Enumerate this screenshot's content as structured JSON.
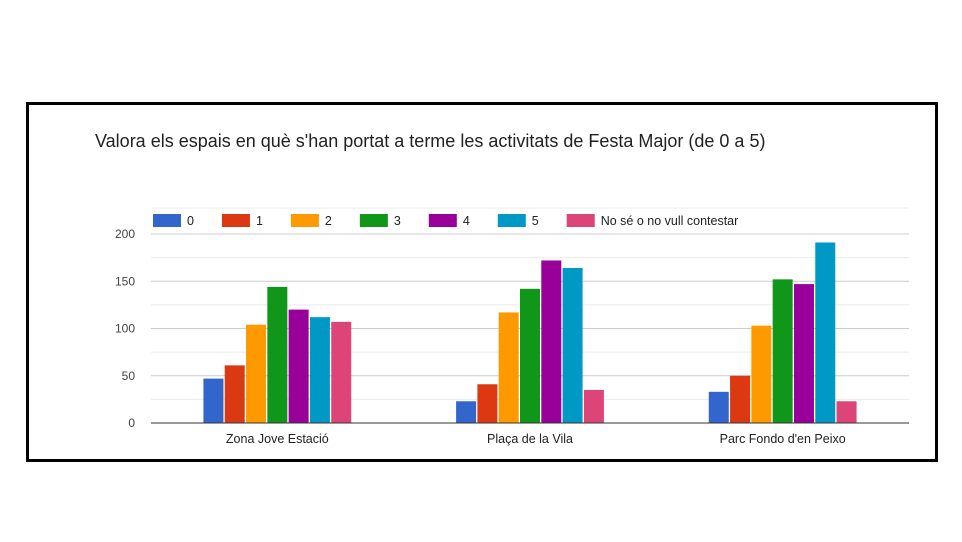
{
  "chart_data": {
    "type": "bar",
    "title": "Valora els espais en què s'han portat a terme les activitats de Festa Major (de 0 a 5)",
    "categories": [
      "Zona Jove Estació",
      "Plaça de la Vila",
      "Parc Fondo d'en Peixo"
    ],
    "series": [
      {
        "name": "0",
        "color": "#3366cc",
        "values": [
          47,
          23,
          33
        ]
      },
      {
        "name": "1",
        "color": "#dc3912",
        "values": [
          61,
          41,
          50
        ]
      },
      {
        "name": "2",
        "color": "#ff9900",
        "values": [
          104,
          117,
          103
        ]
      },
      {
        "name": "3",
        "color": "#109618",
        "values": [
          144,
          142,
          152
        ]
      },
      {
        "name": "4",
        "color": "#990099",
        "values": [
          120,
          172,
          147
        ]
      },
      {
        "name": "5",
        "color": "#0099c6",
        "values": [
          112,
          164,
          191
        ]
      },
      {
        "name": "No sé o no vull contestar",
        "color": "#dd4477",
        "values": [
          107,
          35,
          23
        ]
      }
    ],
    "ylim": [
      0,
      200
    ],
    "yticks": [
      0,
      50,
      100,
      150,
      200
    ],
    "xlabel": "",
    "ylabel": "",
    "grid": true,
    "legend_position": "top"
  }
}
